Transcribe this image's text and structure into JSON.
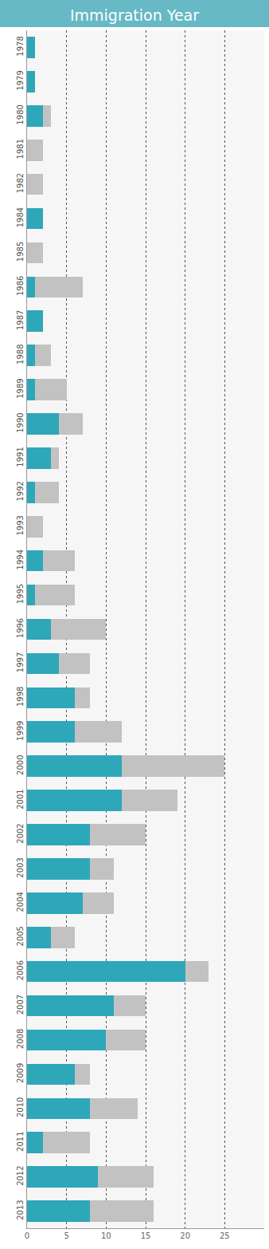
{
  "chart_data": {
    "type": "bar",
    "title": "Immigration Year",
    "orientation": "horizontal",
    "stacked": true,
    "categories": [
      "1978",
      "1979",
      "1980",
      "1981",
      "1982",
      "1984",
      "1985",
      "1986",
      "1987",
      "1988",
      "1989",
      "1990",
      "1991",
      "1992",
      "1993",
      "1994",
      "1995",
      "1996",
      "1997",
      "1998",
      "1999",
      "2000",
      "2001",
      "2002",
      "2003",
      "2004",
      "2005",
      "2006",
      "2007",
      "2008",
      "2009",
      "2010",
      "2011",
      "2012",
      "2013"
    ],
    "series": [
      {
        "color": "#2ea7b9",
        "values": [
          1,
          1,
          2,
          0,
          0,
          2,
          0,
          1,
          2,
          1,
          1,
          4,
          3,
          1,
          0,
          2,
          1,
          3,
          4,
          6,
          6,
          12,
          12,
          8,
          8,
          7,
          3,
          20,
          11,
          10,
          6,
          8,
          2,
          9,
          8
        ]
      },
      {
        "color": "#c2c2c2",
        "values": [
          0,
          0,
          1,
          2,
          2,
          0,
          2,
          6,
          0,
          2,
          4,
          3,
          1,
          3,
          2,
          4,
          5,
          7,
          4,
          2,
          6,
          13,
          7,
          7,
          3,
          4,
          3,
          3,
          4,
          5,
          2,
          6,
          6,
          7,
          8
        ]
      }
    ],
    "xlim": [
      0,
      30
    ],
    "xticks": [
      0,
      5,
      10,
      15,
      20,
      25
    ],
    "grid": true
  }
}
